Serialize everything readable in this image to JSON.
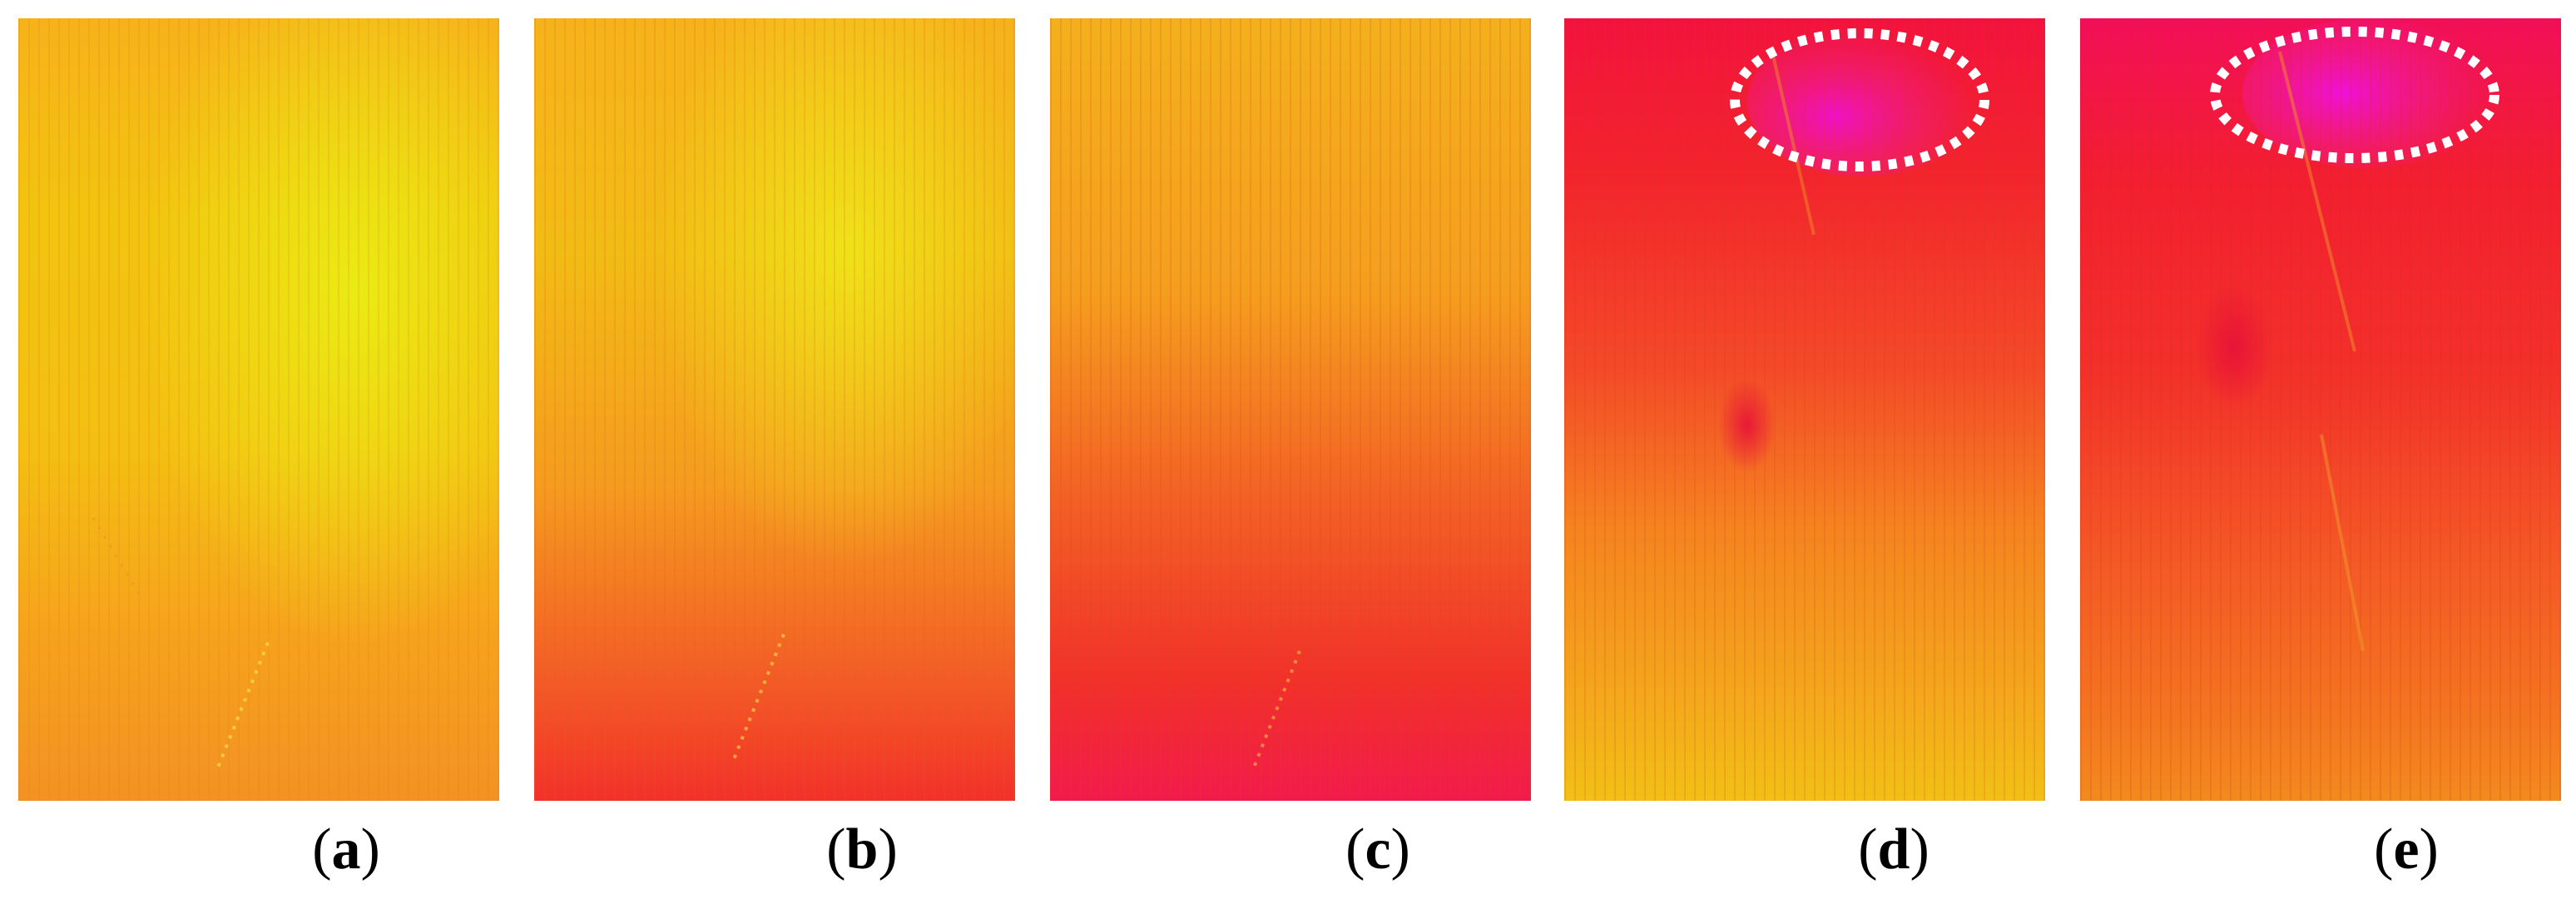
{
  "figure": {
    "panels": [
      {
        "id": "a",
        "caption_letter": "a",
        "has_highlight": false
      },
      {
        "id": "b",
        "caption_letter": "b",
        "has_highlight": false
      },
      {
        "id": "c",
        "caption_letter": "c",
        "has_highlight": false
      },
      {
        "id": "d",
        "caption_letter": "d",
        "has_highlight": true
      },
      {
        "id": "e",
        "caption_letter": "e",
        "has_highlight": true
      }
    ],
    "caption_open": "(",
    "caption_close": ")"
  },
  "colors": {
    "yellow": "#f2f20a",
    "orange": "#f7a31c",
    "red": "#f5222e",
    "magenta": "#f50a8a",
    "highlight_outline": "#ffffff"
  }
}
